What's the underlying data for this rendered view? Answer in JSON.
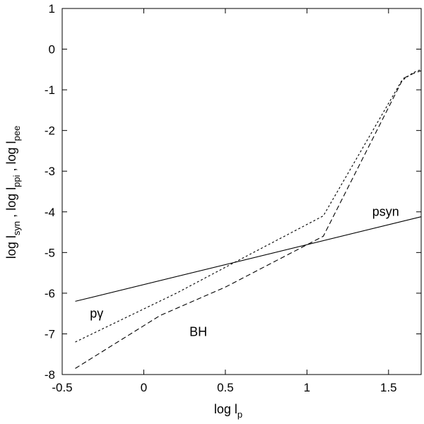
{
  "chart_data": {
    "type": "line",
    "xlabel": "log l",
    "xlabel_sub": "p",
    "ylabel_parts": [
      {
        "t": "log l"
      },
      {
        "t": "syn",
        "sub": true
      },
      {
        "t": " , log l"
      },
      {
        "t": "ppi",
        "sub": true
      },
      {
        "t": " , log l"
      },
      {
        "t": "pee",
        "sub": true
      }
    ],
    "xlim": [
      -0.5,
      1.7
    ],
    "ylim": [
      -8,
      1
    ],
    "xticks": [
      -0.5,
      0,
      0.5,
      1,
      1.5
    ],
    "xtick_labels": [
      "-0.5",
      "0",
      "0.5",
      "1",
      "1.5"
    ],
    "yticks": [
      -8,
      -7,
      -6,
      -5,
      -4,
      -3,
      -2,
      -1,
      0,
      1
    ],
    "ytick_labels": [
      "-8",
      "-7",
      "-6",
      "-5",
      "-4",
      "-3",
      "-2",
      "-1",
      "0",
      "1"
    ],
    "grid": false,
    "series": [
      {
        "name": "psyn",
        "style": "solid",
        "x": [
          -0.42,
          1.7
        ],
        "y": [
          -6.2,
          -4.12
        ]
      },
      {
        "name": "pγ",
        "style": "dotted",
        "x": [
          -0.42,
          0.2,
          0.6,
          1.1,
          1.58,
          1.65,
          1.7
        ],
        "y": [
          -7.2,
          -6.0,
          -5.15,
          -4.1,
          -0.78,
          -0.58,
          -0.5
        ]
      },
      {
        "name": "BH",
        "style": "dashed",
        "x": [
          -0.42,
          0.1,
          0.5,
          1.1,
          1.59,
          1.65,
          1.7
        ],
        "y": [
          -7.85,
          -6.55,
          -5.85,
          -4.6,
          -0.72,
          -0.6,
          -0.53
        ]
      }
    ],
    "annotations": [
      {
        "text": "psyn",
        "x": 1.4,
        "y": -4.1
      },
      {
        "text": "pγ",
        "x": -0.33,
        "y": -6.6
      },
      {
        "text": "BH",
        "x": 0.28,
        "y": -7.05
      }
    ]
  }
}
